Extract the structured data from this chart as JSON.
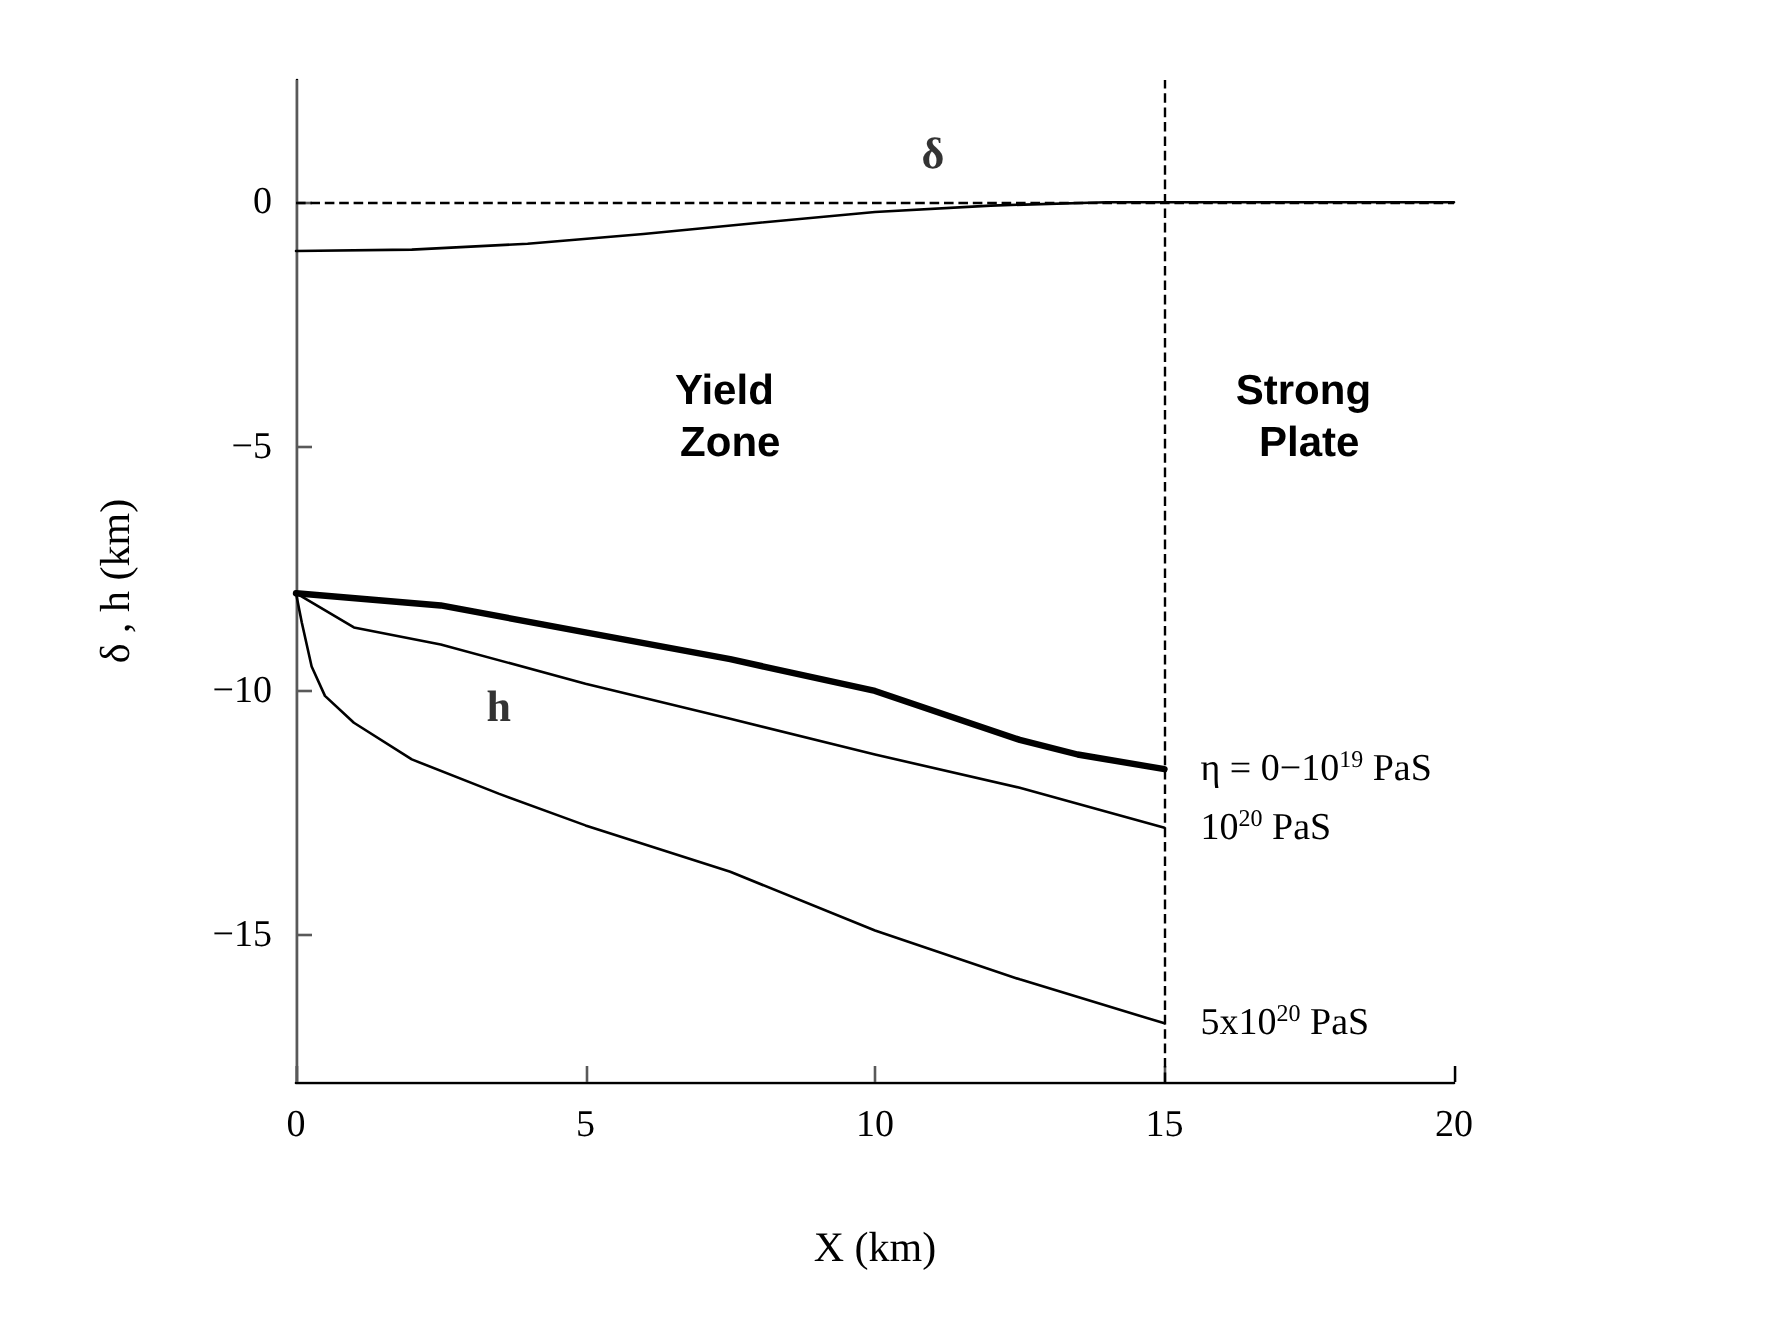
{
  "chart_data": {
    "type": "line",
    "xlabel": "X (km)",
    "ylabel": "δ , h (km)",
    "xlim": [
      0,
      20
    ],
    "xticks": [
      0,
      5,
      10,
      15,
      20
    ],
    "ylim": [
      -18,
      2.5
    ],
    "yticks": [
      0,
      -5,
      -10,
      -15
    ],
    "grid": false,
    "legend": false,
    "marker": "none",
    "line_style": "solid",
    "series": [
      {
        "color": "#000000",
        "x": [
          0,
          2,
          4,
          6,
          8,
          10,
          12,
          14,
          15,
          20
        ],
        "values": [
          -1,
          -0.97,
          -0.85,
          -0.65,
          -0.42,
          -0.2,
          -0.07,
          0,
          0,
          0
        ]
      },
      {
        "name": "η = 0−10$^{19}$ PaS",
        "color": "#000000",
        "x": [
          0,
          2.5,
          5,
          7.5,
          10,
          12.5,
          13.5,
          15
        ],
        "values": [
          -8,
          -8.25,
          -8.8,
          -9.35,
          -10,
          -11,
          -11.3,
          -11.6
        ]
      },
      {
        "name": "10$^{20}$ PaS",
        "color": "#000000",
        "x": [
          0,
          1,
          2.5,
          5,
          7.5,
          10,
          12.5,
          15
        ],
        "values": [
          -8,
          -8.7,
          -9.05,
          -9.85,
          -10.57,
          -11.3,
          -11.98,
          -12.8
        ]
      },
      {
        "name": "5x10$^{20}$ PaS",
        "color": "#000000",
        "x": [
          0,
          0.1,
          0.27,
          0.5,
          1,
          2,
          3.5,
          5,
          7.5,
          10,
          12.5,
          15
        ],
        "values": [
          -8,
          -8.6,
          -9.5,
          -10.1,
          -10.65,
          -11.4,
          -12.1,
          -12.75,
          -13.7,
          -14.9,
          -15.9,
          -16.8
        ]
      }
    ],
    "ref_lines": [
      {
        "axis": "y",
        "value": 0,
        "line_style": "dashed"
      },
      {
        "axis": "x",
        "value": 15,
        "line_style": "dashed"
      }
    ],
    "bands": [
      {
        "axis": "x",
        "from": 0,
        "to": 15,
        "label": "Yield Zone"
      },
      {
        "axis": "x",
        "from": 15,
        "to": 20,
        "label": "Strong Plate"
      }
    ],
    "annotations": [
      {
        "text": "δ",
        "x": 11,
        "y": 1
      },
      {
        "text": "h",
        "x": 3.5,
        "y": -10.3
      }
    ]
  }
}
